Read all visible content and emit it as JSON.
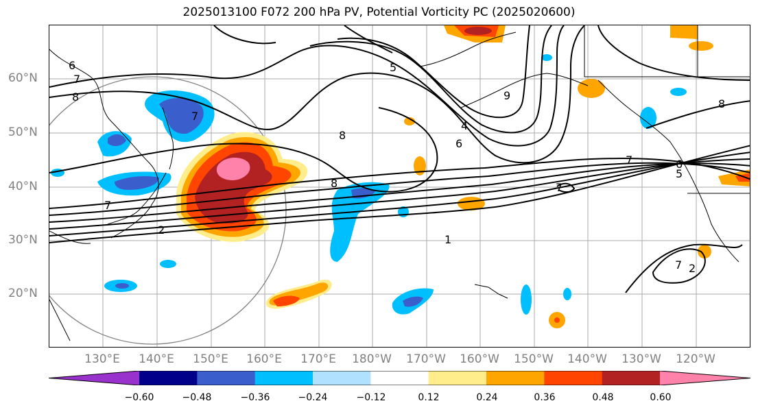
{
  "title": "2025013100 F072 200 hPa PV, Potential Vorticity PC (2025020600)",
  "lat_labels": [
    "60°N",
    "50°N",
    "40°N",
    "30°N",
    "20°N"
  ],
  "lon_labels": [
    "130°E",
    "140°E",
    "150°E",
    "160°E",
    "170°E",
    "180°W",
    "170°W",
    "160°W",
    "150°W",
    "140°W",
    "130°W",
    "120°W"
  ],
  "contour_labels": [
    "6",
    "7",
    "8",
    "8",
    "7",
    "2",
    "8",
    "5",
    "4",
    "6",
    "7",
    "8",
    "9",
    "7",
    "6",
    "5",
    "1",
    "7",
    "7",
    "2"
  ],
  "colorbar": {
    "ticks": [
      "−0.60",
      "−0.48",
      "−0.36",
      "−0.24",
      "−0.12",
      "0.12",
      "0.24",
      "0.36",
      "0.48",
      "0.60"
    ],
    "colors": [
      "#9932CC",
      "#00008B",
      "#3A5FCD",
      "#00BFFF",
      "#B0E2FF",
      "#FFFFFF",
      "#FFEC8B",
      "#FFA500",
      "#FF4500",
      "#B22222",
      "#FF82AB"
    ]
  }
}
